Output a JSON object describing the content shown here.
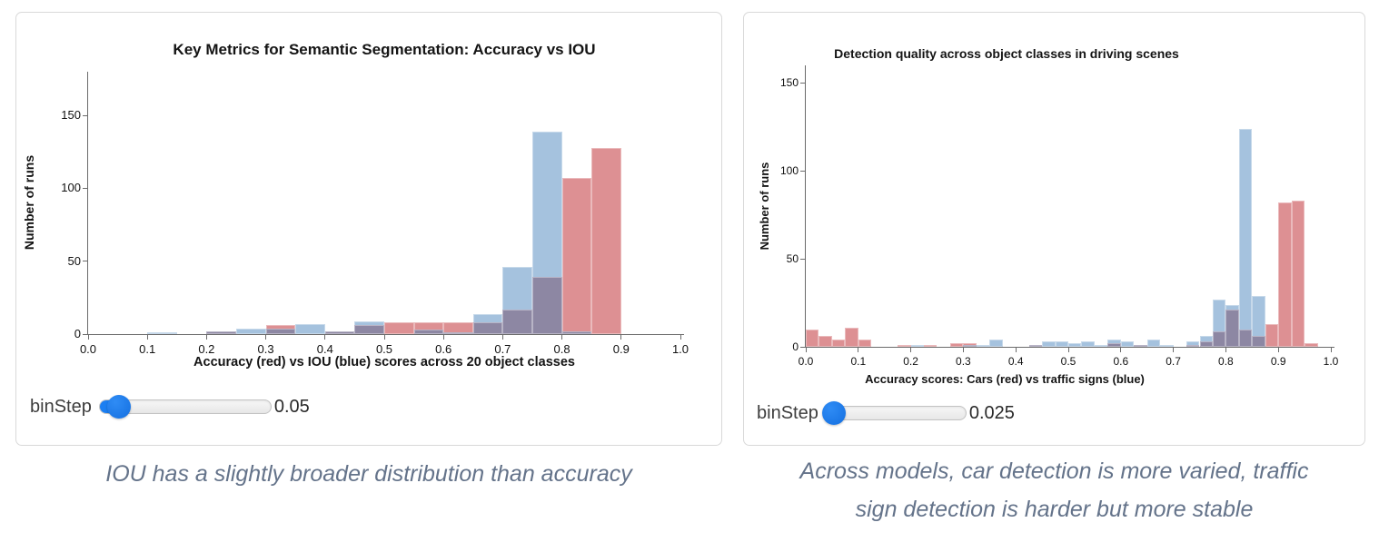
{
  "chart_data": [
    {
      "type": "bar",
      "subtype": "overlaid-histogram",
      "title": "Key Metrics for Semantic Segmentation: Accuracy vs IOU",
      "xlabel": "Accuracy (red) vs IOU (blue) scores across 20 object classes",
      "ylabel": "Number of runs",
      "bin_step": 0.05,
      "x_domain": [
        0.0,
        1.0
      ],
      "y_max": 180,
      "x_ticks": [
        "0.0",
        "0.1",
        "0.2",
        "0.3",
        "0.4",
        "0.5",
        "0.6",
        "0.7",
        "0.8",
        "0.9",
        "1.0"
      ],
      "y_ticks": [
        0,
        50,
        100,
        150
      ],
      "colors": {
        "red": "#dd9093",
        "blue": "#a5c2de",
        "overlap": "#8d87a3"
      },
      "series": {
        "red": {
          "name": "Accuracy",
          "bins": [
            [
              0.2,
              2
            ],
            [
              0.3,
              6
            ],
            [
              0.4,
              2
            ],
            [
              0.45,
              6
            ],
            [
              0.5,
              8
            ],
            [
              0.55,
              8
            ],
            [
              0.6,
              8
            ],
            [
              0.65,
              8
            ],
            [
              0.7,
              17
            ],
            [
              0.75,
              39
            ],
            [
              0.8,
              107
            ],
            [
              0.85,
              128
            ]
          ]
        },
        "blue": {
          "name": "IOU",
          "bins": [
            [
              0.1,
              1
            ],
            [
              0.2,
              2
            ],
            [
              0.25,
              4
            ],
            [
              0.3,
              4
            ],
            [
              0.35,
              7
            ],
            [
              0.4,
              2
            ],
            [
              0.45,
              9
            ],
            [
              0.55,
              3
            ],
            [
              0.6,
              1
            ],
            [
              0.65,
              14
            ],
            [
              0.7,
              46
            ],
            [
              0.75,
              139
            ],
            [
              0.8,
              2
            ]
          ]
        }
      },
      "slider": {
        "label": "binStep",
        "value": "0.05",
        "fraction": 0.11
      },
      "caption": "IOU has a slightly broader distribution than accuracy"
    },
    {
      "type": "bar",
      "subtype": "overlaid-histogram",
      "title": "Detection quality across object classes in driving scenes",
      "xlabel": "Accuracy scores: Cars (red) vs traffic signs (blue)",
      "ylabel": "Number of runs",
      "bin_step": 0.025,
      "x_domain": [
        0.0,
        1.0
      ],
      "y_max": 160,
      "x_ticks": [
        "0.0",
        "0.1",
        "0.2",
        "0.3",
        "0.4",
        "0.5",
        "0.6",
        "0.7",
        "0.8",
        "0.9",
        "1.0"
      ],
      "y_ticks": [
        0,
        50,
        100,
        150
      ],
      "colors": {
        "red": "#dd9093",
        "blue": "#a5c2de",
        "overlap": "#8d87a3"
      },
      "series": {
        "red": {
          "name": "Cars",
          "bins": [
            [
              0.0,
              10
            ],
            [
              0.025,
              6
            ],
            [
              0.05,
              4
            ],
            [
              0.075,
              11
            ],
            [
              0.1,
              4
            ],
            [
              0.175,
              1
            ],
            [
              0.225,
              1
            ],
            [
              0.275,
              2
            ],
            [
              0.3,
              2
            ],
            [
              0.425,
              1
            ],
            [
              0.575,
              2
            ],
            [
              0.625,
              1
            ],
            [
              0.725,
              1
            ],
            [
              0.75,
              3
            ],
            [
              0.775,
              9
            ],
            [
              0.8,
              21
            ],
            [
              0.825,
              10
            ],
            [
              0.85,
              6
            ],
            [
              0.875,
              13
            ],
            [
              0.9,
              82
            ],
            [
              0.925,
              83
            ],
            [
              0.95,
              2
            ]
          ]
        },
        "blue": {
          "name": "traffic signs",
          "bins": [
            [
              0.2,
              1
            ],
            [
              0.3,
              1
            ],
            [
              0.325,
              1
            ],
            [
              0.35,
              4
            ],
            [
              0.425,
              1
            ],
            [
              0.45,
              3
            ],
            [
              0.475,
              3
            ],
            [
              0.5,
              2
            ],
            [
              0.525,
              3
            ],
            [
              0.55,
              1
            ],
            [
              0.575,
              4
            ],
            [
              0.6,
              3
            ],
            [
              0.625,
              1
            ],
            [
              0.65,
              4
            ],
            [
              0.675,
              1
            ],
            [
              0.725,
              3
            ],
            [
              0.75,
              6
            ],
            [
              0.775,
              27
            ],
            [
              0.8,
              24
            ],
            [
              0.825,
              124
            ],
            [
              0.85,
              29
            ]
          ]
        }
      },
      "slider": {
        "label": "binStep",
        "value": "0.025",
        "fraction": 0.055
      },
      "caption": "Across models, car detection is more varied, traffic\nsign detection is harder but more stable"
    }
  ]
}
